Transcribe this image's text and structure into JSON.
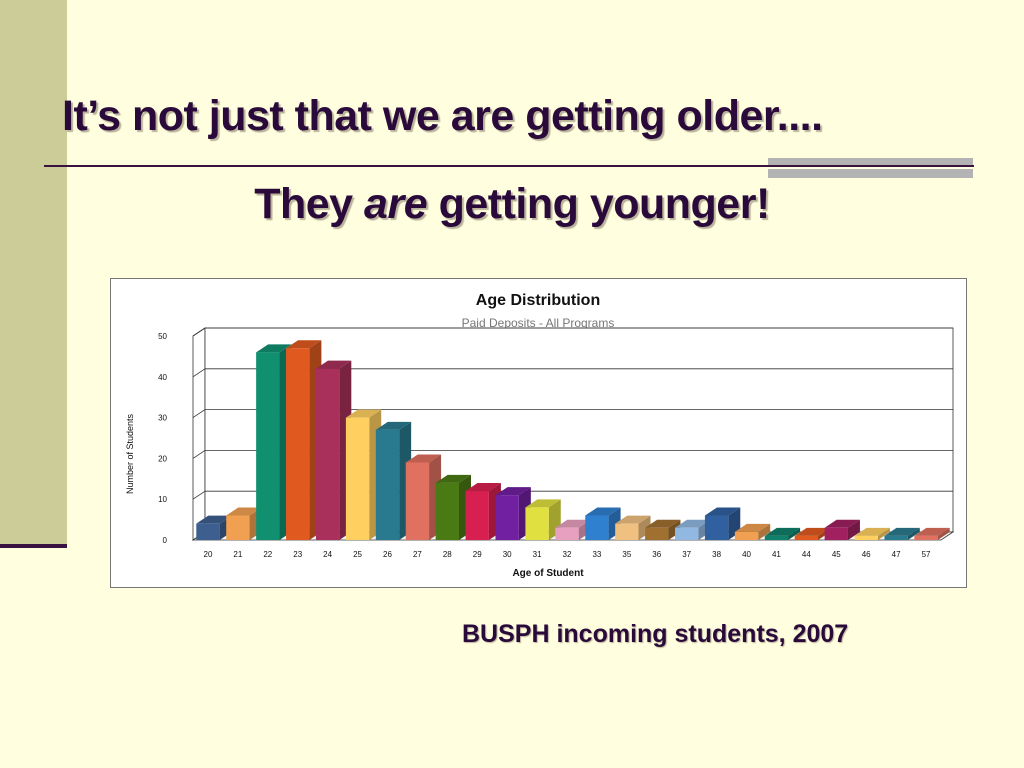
{
  "slide": {
    "title_line1": "It’s not just that we are getting older....",
    "title_line2_pre": "They ",
    "title_line2_em": "are",
    "title_line2_post": " getting younger!",
    "caption": "BUSPH incoming students, 2007"
  },
  "colors": {
    "background": "#ffffe0",
    "accent_bar": "#cccc99",
    "title_text": "#2a0a3a",
    "rule": "#3a1240",
    "rule_gray": "#b3b3b3"
  },
  "chart_data": {
    "type": "bar",
    "title": "Age Distribution",
    "subtitle": "Paid Deposits - All Programs",
    "xlabel": "Age of Student",
    "ylabel": "Number of Students",
    "ylim": [
      0,
      50
    ],
    "yticks": [
      0,
      10,
      20,
      30,
      40,
      50
    ],
    "grid": true,
    "categories": [
      "20",
      "21",
      "22",
      "23",
      "24",
      "25",
      "26",
      "27",
      "28",
      "29",
      "30",
      "31",
      "32",
      "33",
      "35",
      "36",
      "37",
      "38",
      "40",
      "41",
      "44",
      "45",
      "46",
      "47",
      "57"
    ],
    "values": [
      4,
      6,
      46,
      47,
      42,
      30,
      27,
      19,
      14,
      12,
      11,
      8,
      3,
      6,
      4,
      3,
      3,
      6,
      2,
      1,
      1,
      3,
      1,
      1,
      1
    ],
    "bar_colors": [
      "#3d5f8f",
      "#f0a050",
      "#119070",
      "#e05a20",
      "#a8305a",
      "#ffd060",
      "#2a7a8f",
      "#e07060",
      "#4a7a14",
      "#d82050",
      "#7020a0",
      "#e0e040",
      "#e8a0c0",
      "#3080d0",
      "#f0c080",
      "#a07030",
      "#90b8e0",
      "#3060a0",
      "#f0a050",
      "#10806a",
      "#e05a20",
      "#a02060",
      "#ffd060",
      "#2a7a8f",
      "#e07060"
    ]
  }
}
